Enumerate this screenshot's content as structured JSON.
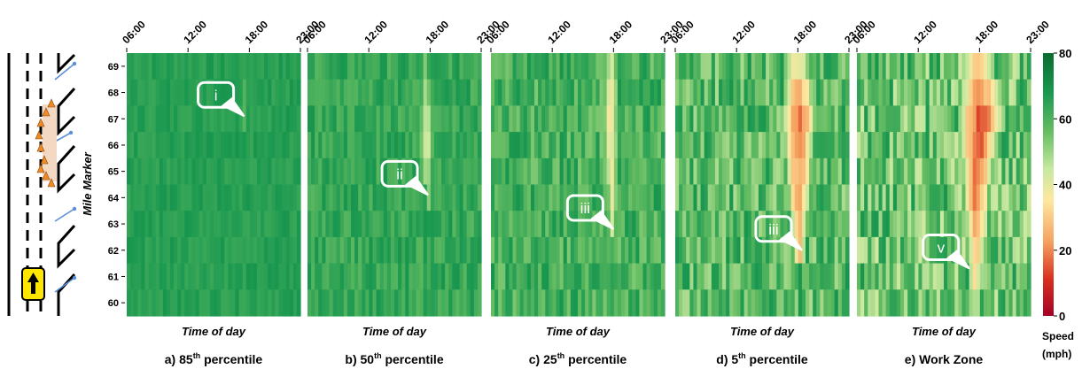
{
  "chart_data": {
    "type": "heatmap",
    "ylabel": "Mile Marker",
    "xlabel": "Time of day",
    "x_ticks": [
      "06:00",
      "12:00",
      "18:00",
      "23:00"
    ],
    "x_range_hours": [
      6,
      23
    ],
    "y_ticks": [
      "69",
      "68",
      "67",
      "66",
      "65",
      "64",
      "63",
      "62",
      "61",
      "60"
    ],
    "y_range_mile": [
      60,
      69
    ],
    "colorbar": {
      "label": "Speed (mph)",
      "ticks": [
        "80",
        "60",
        "40",
        "20",
        "0"
      ],
      "range": [
        0,
        80
      ],
      "colors": [
        "#a50026",
        "#e34a33",
        "#f5a05f",
        "#fee8a0",
        "#c7e8a0",
        "#66bd63",
        "#1a9850",
        "#0a6b2f"
      ]
    },
    "panels": [
      {
        "id": "a",
        "caption": "a) 85",
        "sup": "th",
        "caption_tail": " percentile",
        "callouts": [
          {
            "label": "i",
            "hour": 17.5,
            "mile": 67.1
          }
        ],
        "congestion": [
          {
            "mile": 69,
            "start": 17.4,
            "end": 17.8,
            "min_speed": 58
          },
          {
            "mile": 68,
            "start": 17.4,
            "end": 17.7,
            "min_speed": 60
          },
          {
            "mile": 67,
            "start": 17.4,
            "end": 17.7,
            "min_speed": 62
          }
        ]
      },
      {
        "id": "b",
        "caption": "b) 50",
        "sup": "th",
        "caption_tail": " percentile",
        "callouts": [
          {
            "label": "ii",
            "hour": 17.8,
            "mile": 64.1
          }
        ],
        "congestion": [
          {
            "mile": 69,
            "start": 17.3,
            "end": 17.9,
            "min_speed": 50
          },
          {
            "mile": 68,
            "start": 17.1,
            "end": 18.1,
            "min_speed": 45
          },
          {
            "mile": 67,
            "start": 17.0,
            "end": 18.2,
            "min_speed": 43
          },
          {
            "mile": 66,
            "start": 17.0,
            "end": 18.3,
            "min_speed": 42
          },
          {
            "mile": 65,
            "start": 17.3,
            "end": 18.1,
            "min_speed": 45
          },
          {
            "mile": 64,
            "start": 17.5,
            "end": 18.0,
            "min_speed": 48
          }
        ]
      },
      {
        "id": "c",
        "caption": "c) 25",
        "sup": "th",
        "caption_tail": " percentile",
        "callouts": [
          {
            "label": "iii",
            "hour": 18.0,
            "mile": 62.8
          }
        ],
        "congestion": [
          {
            "mile": 69,
            "start": 17.2,
            "end": 18.2,
            "min_speed": 42
          },
          {
            "mile": 68,
            "start": 17.0,
            "end": 18.4,
            "min_speed": 38
          },
          {
            "mile": 67,
            "start": 17.0,
            "end": 18.4,
            "min_speed": 36
          },
          {
            "mile": 66,
            "start": 17.1,
            "end": 18.4,
            "min_speed": 36
          },
          {
            "mile": 65,
            "start": 17.3,
            "end": 18.3,
            "min_speed": 38
          },
          {
            "mile": 64,
            "start": 17.4,
            "end": 18.3,
            "min_speed": 40
          },
          {
            "mile": 63,
            "start": 17.6,
            "end": 18.2,
            "min_speed": 45
          }
        ]
      },
      {
        "id": "d",
        "caption": "d) 5",
        "sup": "th",
        "caption_tail": " percentile",
        "callouts": [
          {
            "label": "iii",
            "hour": 18.4,
            "mile": 62.0
          }
        ],
        "congestion": [
          {
            "mile": 69,
            "start": 16.5,
            "end": 19.3,
            "min_speed": 35
          },
          {
            "mile": 68,
            "start": 16.6,
            "end": 19.6,
            "min_speed": 25
          },
          {
            "mile": 67,
            "start": 16.5,
            "end": 19.8,
            "min_speed": 18
          },
          {
            "mile": 66,
            "start": 16.6,
            "end": 19.6,
            "min_speed": 20
          },
          {
            "mile": 65,
            "start": 16.8,
            "end": 19.4,
            "min_speed": 22
          },
          {
            "mile": 64,
            "start": 17.0,
            "end": 19.2,
            "min_speed": 24
          },
          {
            "mile": 63,
            "start": 17.2,
            "end": 19.0,
            "min_speed": 26
          },
          {
            "mile": 62,
            "start": 17.6,
            "end": 18.8,
            "min_speed": 30
          }
        ]
      },
      {
        "id": "e",
        "caption": "e) Work Zone",
        "sup": "",
        "caption_tail": "",
        "callouts": [
          {
            "label": "v",
            "hour": 17.0,
            "mile": 61.3
          }
        ],
        "congestion": [
          {
            "mile": 69,
            "start": 16.2,
            "end": 19.5,
            "min_speed": 30
          },
          {
            "mile": 68,
            "start": 16.0,
            "end": 20.2,
            "min_speed": 22
          },
          {
            "mile": 67,
            "start": 15.8,
            "end": 20.5,
            "min_speed": 15
          },
          {
            "mile": 66,
            "start": 16.0,
            "end": 19.8,
            "min_speed": 15
          },
          {
            "mile": 65,
            "start": 16.2,
            "end": 19.4,
            "min_speed": 18
          },
          {
            "mile": 64,
            "start": 16.4,
            "end": 19.0,
            "min_speed": 20
          },
          {
            "mile": 63,
            "start": 16.6,
            "end": 18.8,
            "min_speed": 24
          },
          {
            "mile": 62,
            "start": 16.8,
            "end": 18.5,
            "min_speed": 28
          },
          {
            "mile": 61,
            "start": 17.0,
            "end": 18.2,
            "min_speed": 35
          }
        ]
      }
    ]
  },
  "schematic": {
    "description_icon": "roadway-schematic-with-work-zone-cones",
    "direction_icon": "up-arrow-icon",
    "accent_yellow": "#ffe600",
    "cone_color": "#f08a24",
    "arrow_color": "#5b8fd6"
  }
}
